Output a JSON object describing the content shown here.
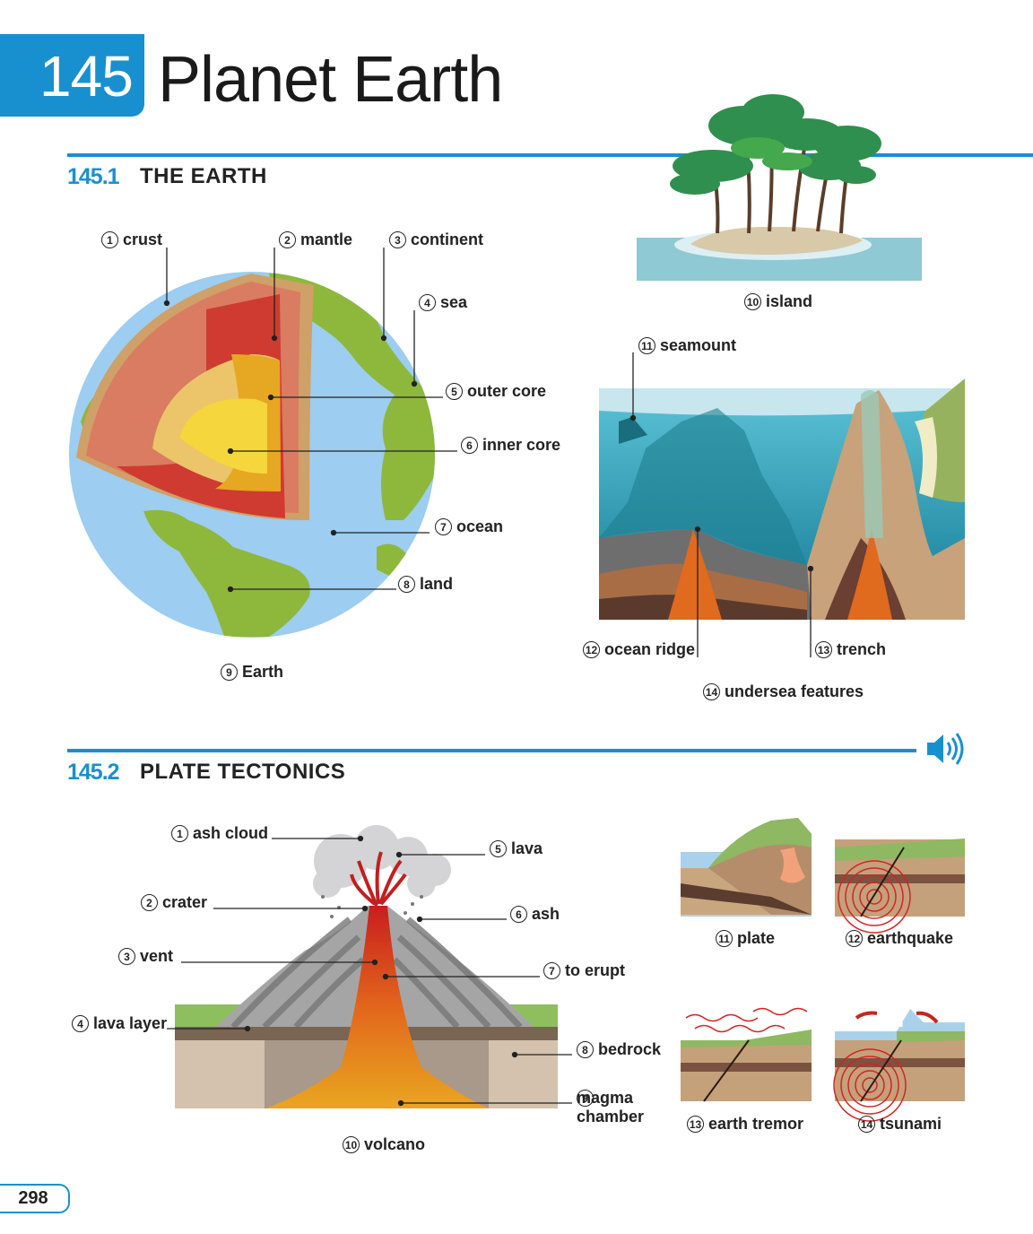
{
  "chapter": {
    "number": "145",
    "title": "Planet Earth"
  },
  "section1": {
    "number": "145.1",
    "title": "THE EARTH",
    "labels": [
      {
        "num": "1",
        "text": "crust"
      },
      {
        "num": "2",
        "text": "mantle"
      },
      {
        "num": "3",
        "text": "continent"
      },
      {
        "num": "4",
        "text": "sea"
      },
      {
        "num": "5",
        "text": "outer core"
      },
      {
        "num": "6",
        "text": "inner core"
      },
      {
        "num": "7",
        "text": "ocean"
      },
      {
        "num": "8",
        "text": "land"
      },
      {
        "num": "9",
        "text": "Earth"
      },
      {
        "num": "10",
        "text": "island"
      },
      {
        "num": "11",
        "text": "seamount"
      },
      {
        "num": "12",
        "text": "ocean ridge"
      },
      {
        "num": "13",
        "text": "trench"
      },
      {
        "num": "14",
        "text": "undersea features"
      }
    ]
  },
  "section2": {
    "number": "145.2",
    "title": "PLATE TECTONICS",
    "labels": [
      {
        "num": "1",
        "text": "ash cloud"
      },
      {
        "num": "2",
        "text": "crater"
      },
      {
        "num": "3",
        "text": "vent"
      },
      {
        "num": "4",
        "text": "lava layer"
      },
      {
        "num": "5",
        "text": "lava"
      },
      {
        "num": "6",
        "text": "ash"
      },
      {
        "num": "7",
        "text": "to erupt"
      },
      {
        "num": "8",
        "text": "bedrock"
      },
      {
        "num": "9",
        "text": "magma\nchamber"
      },
      {
        "num": "10",
        "text": "volcano"
      },
      {
        "num": "11",
        "text": "plate"
      },
      {
        "num": "12",
        "text": "earthquake"
      },
      {
        "num": "13",
        "text": "earth tremor"
      },
      {
        "num": "14",
        "text": "tsunami"
      }
    ]
  },
  "page_number": "298",
  "icons": {
    "audio": "speaker-icon"
  },
  "colors": {
    "accent": "#1890d0"
  }
}
